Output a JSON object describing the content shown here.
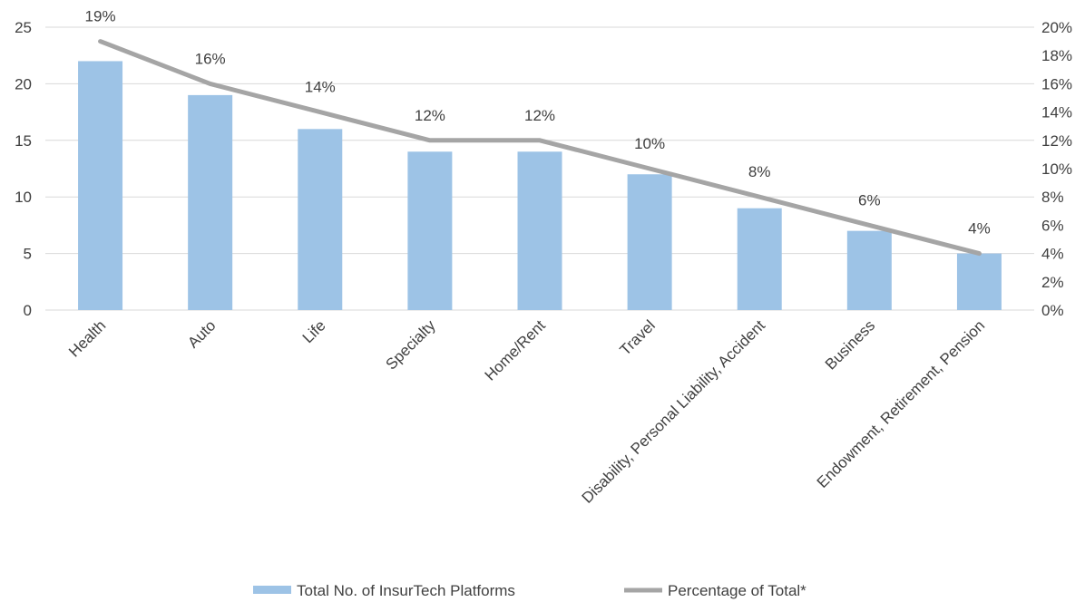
{
  "chart_data": {
    "type": "bar",
    "title": "",
    "xlabel": "",
    "ylabel": "",
    "categories": [
      "Health",
      "Auto",
      "Life",
      "Specialty",
      "Home/Rent",
      "Travel",
      "Disability, Personal Liability, Accident",
      "Business",
      "Endowment, Retirement, Pension"
    ],
    "series": [
      {
        "name": "Total No. of InsurTech Platforms",
        "type": "bar",
        "axis": "left",
        "color": "#9dc3e6",
        "values": [
          22,
          19,
          16,
          14,
          14,
          12,
          9,
          7,
          5
        ]
      },
      {
        "name": "Percentage of Total*",
        "type": "line",
        "axis": "right",
        "color": "#a5a5a5",
        "values": [
          19,
          16,
          14,
          12,
          12,
          10,
          8,
          6,
          4
        ],
        "labels": [
          "19%",
          "16%",
          "14%",
          "12%",
          "12%",
          "10%",
          "8%",
          "6%",
          "4%"
        ]
      }
    ],
    "ylim": [
      0,
      25
    ],
    "yticks": [
      "0",
      "5",
      "10",
      "15",
      "20",
      "25"
    ],
    "ylim_right": [
      0,
      20
    ],
    "yticks_right": [
      "0%",
      "2%",
      "4%",
      "6%",
      "8%",
      "10%",
      "12%",
      "14%",
      "16%",
      "18%",
      "20%"
    ],
    "grid": true,
    "legend": "bottom"
  }
}
